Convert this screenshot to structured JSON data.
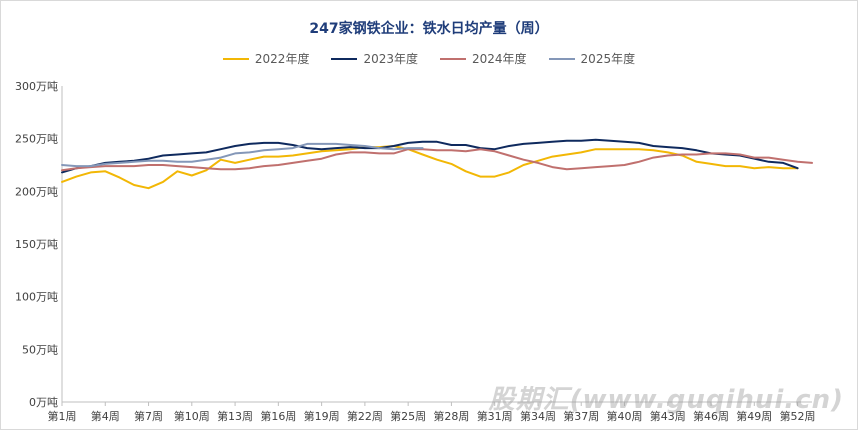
{
  "chart_data": {
    "type": "line",
    "title": "247家钢铁企业：铁水日均产量（周）",
    "ylim": [
      0,
      300
    ],
    "yticks": [
      "0万吨",
      "50万吨",
      "100万吨",
      "150万吨",
      "200万吨",
      "250万吨",
      "300万吨"
    ],
    "ytick_values": [
      0,
      50,
      100,
      150,
      200,
      250,
      300
    ],
    "x": [
      1,
      2,
      3,
      4,
      5,
      6,
      7,
      8,
      9,
      10,
      11,
      12,
      13,
      14,
      15,
      16,
      17,
      18,
      19,
      20,
      21,
      22,
      23,
      24,
      25,
      26,
      27,
      28,
      29,
      30,
      31,
      32,
      33,
      34,
      35,
      36,
      37,
      38,
      39,
      40,
      41,
      42,
      43,
      44,
      45,
      46,
      47,
      48,
      49,
      50,
      51,
      52,
      53
    ],
    "xticks": [
      "第1周",
      "第4周",
      "第7周",
      "第10周",
      "第13周",
      "第16周",
      "第19周",
      "第22周",
      "第25周",
      "第28周",
      "第31周",
      "第34周",
      "第37周",
      "第40周",
      "第43周",
      "第46周",
      "第49周",
      "第52周"
    ],
    "xtick_values": [
      1,
      4,
      7,
      10,
      13,
      16,
      19,
      22,
      25,
      28,
      31,
      34,
      37,
      40,
      43,
      46,
      49,
      52
    ],
    "grid": false,
    "legend": "top-center",
    "series": [
      {
        "name": "2022年度",
        "color": "#f2b705",
        "values": [
          209,
          214,
          218,
          219,
          213,
          206,
          203,
          209,
          219,
          215,
          220,
          230,
          227,
          230,
          233,
          233,
          234,
          236,
          238,
          239,
          240,
          242,
          242,
          243,
          240,
          235,
          230,
          226,
          219,
          214,
          214,
          218,
          225,
          229,
          233,
          235,
          237,
          240,
          240,
          240,
          240,
          239,
          237,
          234,
          228,
          226,
          224,
          224,
          222,
          223,
          222,
          222,
          null
        ]
      },
      {
        "name": "2023年度",
        "color": "#0f2a5e",
        "values": [
          218,
          222,
          224,
          227,
          228,
          229,
          231,
          234,
          235,
          236,
          237,
          240,
          243,
          245,
          246,
          246,
          244,
          241,
          240,
          241,
          242,
          241,
          241,
          243,
          246,
          247,
          247,
          244,
          244,
          241,
          240,
          243,
          245,
          246,
          247,
          248,
          248,
          249,
          248,
          247,
          246,
          243,
          242,
          241,
          239,
          236,
          235,
          234,
          231,
          228,
          227,
          222,
          null
        ]
      },
      {
        "name": "2024年度",
        "color": "#c0706e",
        "values": [
          220,
          222,
          223,
          224,
          224,
          224,
          225,
          225,
          224,
          223,
          222,
          221,
          221,
          222,
          224,
          225,
          227,
          229,
          231,
          235,
          237,
          237,
          236,
          236,
          240,
          240,
          239,
          239,
          238,
          240,
          238,
          234,
          230,
          227,
          223,
          221,
          222,
          223,
          224,
          225,
          228,
          232,
          234,
          235,
          235,
          236,
          236,
          235,
          232,
          232,
          230,
          228,
          227
        ]
      },
      {
        "name": "2025年度",
        "color": "#8497b8",
        "values": [
          225,
          224,
          224,
          226,
          227,
          228,
          229,
          229,
          228,
          228,
          230,
          232,
          236,
          237,
          239,
          240,
          241,
          245,
          245,
          245,
          244,
          243,
          241,
          240,
          241,
          241,
          null,
          null,
          null,
          null,
          null,
          null,
          null,
          null,
          null,
          null,
          null,
          null,
          null,
          null,
          null,
          null,
          null,
          null,
          null,
          null,
          null,
          null,
          null,
          null,
          null,
          null,
          null
        ]
      }
    ]
  },
  "watermark": "股期汇(www.guqihui.cn)"
}
